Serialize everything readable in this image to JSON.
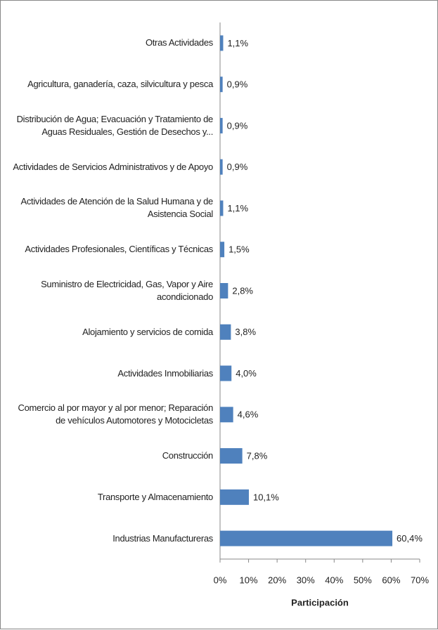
{
  "chart_data": {
    "type": "bar",
    "orientation": "horizontal",
    "categories": [
      "Otras Actividades",
      "Agricultura, ganadería, caza, silvicultura y pesca",
      "Distribución de Agua; Evacuación y Tratamiento de Aguas Residuales, Gestión de Desechos y...",
      "Actividades de Servicios Administrativos y de Apoyo",
      "Actividades de Atención de la Salud Humana y de Asistencia Social",
      "Actividades Profesionales, Científicas y Técnicas",
      "Suministro de Electricidad, Gas, Vapor y Aire acondicionado",
      "Alojamiento y servicios de comida",
      "Actividades Inmobiliarias",
      "Comercio al por mayor y al por menor; Reparación de vehículos Automotores y Motocicletas",
      "Construcción",
      "Transporte y Almacenamiento",
      "Industrias Manufactureras"
    ],
    "values": [
      1.1,
      0.9,
      0.9,
      0.9,
      1.1,
      1.5,
      2.8,
      3.8,
      4.0,
      4.6,
      7.8,
      10.1,
      60.4
    ],
    "value_labels": [
      "1,1%",
      "0,9%",
      "0,9%",
      "0,9%",
      "1,1%",
      "1,5%",
      "2,8%",
      "3,8%",
      "4,0%",
      "4,6%",
      "7,8%",
      "10,1%",
      "60,4%"
    ],
    "color": "#4f81bd",
    "xlim": [
      0,
      70
    ],
    "xticks": [
      {
        "value": 0,
        "label": "0%"
      },
      {
        "value": 10,
        "label": "10%"
      },
      {
        "value": 20,
        "label": "20%"
      },
      {
        "value": 30,
        "label": "30%"
      },
      {
        "value": 40,
        "label": "40%"
      },
      {
        "value": 50,
        "label": "50%"
      },
      {
        "value": 60,
        "label": "60%"
      },
      {
        "value": 70,
        "label": "70%"
      }
    ],
    "xlabel": "Participación"
  }
}
